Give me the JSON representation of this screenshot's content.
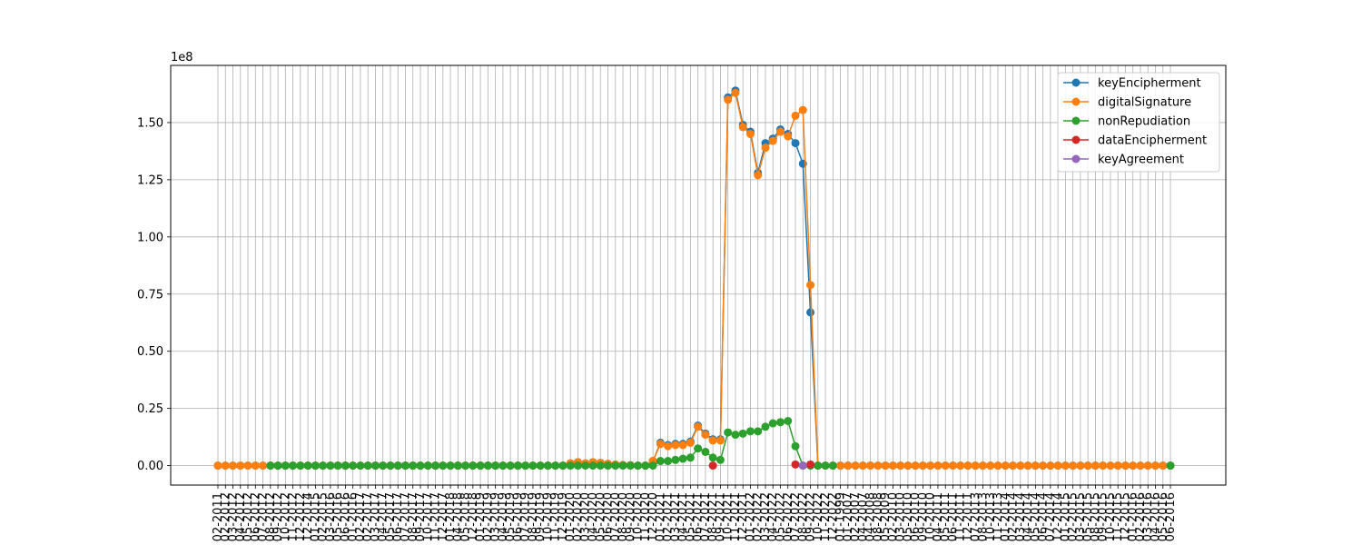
{
  "chart_data": {
    "type": "line",
    "title": "",
    "xlabel": "",
    "ylabel": "",
    "y_scale_label": "1e8",
    "ylim": [
      -8500000,
      175000000
    ],
    "yticks": [
      0,
      25000000,
      50000000,
      75000000,
      100000000,
      125000000,
      150000000
    ],
    "ytick_labels": [
      "0.00",
      "0.25",
      "0.50",
      "0.75",
      "1.00",
      "1.25",
      "1.50"
    ],
    "grid": true,
    "legend_position": "top-right",
    "x": [
      "02-2011",
      "02-2012",
      "03-2012",
      "04-2012",
      "05-2012",
      "06-2012",
      "07-2012",
      "08-2012",
      "09-2012",
      "10-2012",
      "11-2012",
      "12-2012",
      "12-2014",
      "01-2015",
      "02-2015",
      "03-2016",
      "05-2016",
      "06-2016",
      "01-2016",
      "02-2017",
      "02-2017",
      "03-2017",
      "04-2017",
      "05-2017",
      "06-2017",
      "07-2017",
      "08-2017",
      "09-2017",
      "10-2017",
      "11-2017",
      "12-2017",
      "01-2018",
      "04-2018",
      "05-2018",
      "12-2018",
      "01-2019",
      "02-2019",
      "03-2019",
      "04-2019",
      "05-2019",
      "06-2019",
      "07-2019",
      "08-2019",
      "09-2019",
      "10-2019",
      "11-2019",
      "12-2019",
      "01-2020",
      "02-2020",
      "03-2020",
      "04-2020",
      "05-2020",
      "06-2020",
      "07-2020",
      "08-2020",
      "09-2020",
      "10-2020",
      "11-2020",
      "12-2020",
      "01-2021",
      "02-2021",
      "03-2021",
      "04-2021",
      "05-2021",
      "06-2021",
      "07-2021",
      "08-2021",
      "09-2021",
      "10-2021",
      "11-2021",
      "12-2021",
      "01-2022",
      "02-2022",
      "03-2022",
      "04-2022",
      "05-2022",
      "06-2022",
      "07-2022",
      "08-2022",
      "09-2022",
      "10-2022",
      "11-2022",
      "12-2022",
      "01-1999",
      "01-2007",
      "02-2007",
      "04-2007",
      "04-2008",
      "08-2008",
      "05-2009",
      "02-2010",
      "03-2010",
      "05-2010",
      "06-2010",
      "09-2010",
      "10-2010",
      "04-2011",
      "05-2011",
      "06-2011",
      "11-2011",
      "12-2011",
      "07-2013",
      "08-2013",
      "10-2013",
      "11-2013",
      "01-2014",
      "02-2014",
      "03-2014",
      "04-2014",
      "05-2014",
      "06-2014",
      "07-2014",
      "12-2014",
      "01-2015",
      "02-2015",
      "03-2015",
      "05-2015",
      "08-2015",
      "09-2015",
      "10-2015",
      "11-2015",
      "12-2015",
      "01-2016",
      "02-2016",
      "03-2016",
      "04-2016",
      "05-2016",
      "06-2016"
    ],
    "series": [
      {
        "name": "keyEncipherment",
        "color": "#1f77b4",
        "values": [
          0,
          0,
          0,
          0,
          0,
          0,
          0,
          0,
          0,
          0,
          0,
          0,
          0,
          0,
          0,
          0,
          0,
          0,
          0,
          0,
          0,
          0,
          0,
          0,
          0,
          0,
          0,
          0,
          0,
          0,
          0,
          0,
          0,
          0,
          0,
          0,
          0,
          0,
          0,
          0,
          0,
          0,
          0,
          0,
          0,
          0,
          0,
          1000000,
          1500000,
          1000000,
          1500000,
          1200000,
          800000,
          500000,
          300000,
          200000,
          0,
          0,
          2000000,
          10000000,
          9000000,
          9500000,
          9500000,
          10500000,
          17500000,
          14000000,
          11500000,
          11500000,
          161000000,
          164000000,
          149000000,
          146000000,
          128000000,
          141000000,
          143000000,
          147000000,
          145000000,
          141000000,
          132000000,
          67000000,
          0,
          0,
          0,
          0,
          0,
          0,
          0,
          0,
          0,
          0,
          0,
          0,
          0,
          0,
          0,
          0,
          0,
          0,
          0,
          0,
          0,
          0,
          0,
          0,
          0,
          0,
          0,
          0,
          0,
          0,
          0,
          0,
          0,
          0,
          0,
          0,
          0,
          0,
          0,
          0,
          0,
          0,
          0,
          0,
          0,
          0,
          0,
          0
        ]
      },
      {
        "name": "digitalSignature",
        "color": "#ff7f0e",
        "values": [
          0,
          0,
          0,
          0,
          0,
          0,
          0,
          0,
          0,
          0,
          0,
          0,
          0,
          0,
          0,
          0,
          0,
          0,
          0,
          0,
          0,
          0,
          0,
          0,
          0,
          0,
          0,
          0,
          0,
          0,
          0,
          0,
          0,
          0,
          0,
          0,
          0,
          0,
          0,
          0,
          0,
          0,
          0,
          0,
          0,
          0,
          0,
          1000000,
          1500000,
          1000000,
          1500000,
          1200000,
          800000,
          500000,
          300000,
          200000,
          0,
          0,
          2000000,
          9500000,
          8500000,
          9000000,
          9000000,
          10000000,
          17000000,
          13500000,
          11000000,
          11000000,
          160000000,
          163000000,
          148000000,
          145000000,
          127000000,
          139000000,
          142000000,
          146000000,
          144000000,
          153000000,
          155500000,
          79000000,
          0,
          0,
          0,
          0,
          0,
          0,
          0,
          0,
          0,
          0,
          0,
          0,
          0,
          0,
          0,
          0,
          0,
          0,
          0,
          0,
          0,
          0,
          0,
          0,
          0,
          0,
          0,
          0,
          0,
          0,
          0,
          0,
          0,
          0,
          0,
          0,
          0,
          0,
          0,
          0,
          0,
          0,
          0,
          0,
          0,
          0,
          0,
          0
        ]
      },
      {
        "name": "nonRepudiation",
        "color": "#2ca02c",
        "values": [
          null,
          null,
          null,
          null,
          null,
          null,
          null,
          0,
          0,
          0,
          0,
          0,
          0,
          0,
          0,
          0,
          0,
          0,
          0,
          0,
          0,
          0,
          0,
          0,
          0,
          0,
          0,
          0,
          0,
          0,
          0,
          0,
          0,
          0,
          0,
          0,
          0,
          0,
          0,
          0,
          0,
          0,
          0,
          0,
          0,
          0,
          0,
          0,
          0,
          0,
          0,
          0,
          0,
          0,
          0,
          0,
          0,
          0,
          0,
          2000000,
          2000000,
          2500000,
          3000000,
          3500000,
          7500000,
          6000000,
          3500000,
          2500000,
          14500000,
          13500000,
          14000000,
          15000000,
          15000000,
          17000000,
          18500000,
          19000000,
          19500000,
          8500000,
          0,
          0,
          0,
          0,
          0,
          null,
          null,
          null,
          null,
          null,
          null,
          null,
          null,
          null,
          null,
          null,
          null,
          null,
          null,
          null,
          null,
          null,
          null,
          null,
          null,
          null,
          null,
          null,
          null,
          null,
          null,
          null,
          null,
          null,
          null,
          null,
          null,
          null,
          null,
          null,
          null,
          null,
          null,
          null,
          null,
          null,
          null,
          null,
          null,
          0
        ]
      },
      {
        "name": "dataEncipherment",
        "color": "#d62728",
        "values": [
          null,
          null,
          null,
          null,
          null,
          null,
          null,
          null,
          null,
          null,
          null,
          null,
          null,
          null,
          null,
          null,
          null,
          null,
          null,
          null,
          null,
          null,
          null,
          null,
          null,
          null,
          null,
          null,
          null,
          null,
          null,
          null,
          null,
          null,
          null,
          null,
          null,
          null,
          null,
          null,
          null,
          null,
          null,
          null,
          null,
          null,
          null,
          null,
          null,
          null,
          null,
          null,
          null,
          null,
          null,
          null,
          null,
          null,
          null,
          null,
          null,
          null,
          null,
          null,
          null,
          null,
          0,
          null,
          null,
          null,
          null,
          null,
          null,
          null,
          null,
          null,
          null,
          500000,
          null,
          500000,
          null,
          null,
          null,
          null,
          null,
          null,
          null,
          null,
          null,
          null,
          null,
          null,
          null,
          null,
          null,
          null,
          null,
          null,
          null,
          null,
          null,
          null,
          null,
          null,
          null,
          null,
          null,
          null,
          null,
          null,
          null,
          null,
          null,
          null,
          null,
          null,
          null,
          null,
          null,
          null,
          null,
          null,
          null,
          null,
          null,
          null,
          null,
          null
        ]
      },
      {
        "name": "keyAgreement",
        "color": "#9467bd",
        "values": [
          null,
          null,
          null,
          null,
          null,
          null,
          null,
          null,
          null,
          null,
          null,
          null,
          null,
          null,
          null,
          null,
          null,
          null,
          null,
          null,
          null,
          null,
          null,
          null,
          null,
          null,
          null,
          null,
          null,
          null,
          null,
          null,
          null,
          null,
          null,
          null,
          null,
          null,
          null,
          null,
          null,
          null,
          null,
          null,
          null,
          null,
          null,
          null,
          null,
          null,
          null,
          null,
          null,
          null,
          null,
          null,
          null,
          null,
          null,
          null,
          null,
          null,
          null,
          null,
          null,
          null,
          null,
          null,
          null,
          null,
          null,
          null,
          null,
          null,
          null,
          null,
          null,
          null,
          0,
          null,
          null,
          null,
          null,
          null,
          null,
          null,
          null,
          null,
          null,
          null,
          null,
          null,
          null,
          null,
          null,
          null,
          null,
          null,
          null,
          null,
          null,
          null,
          null,
          null,
          null,
          null,
          null,
          null,
          null,
          null,
          null,
          null,
          null,
          null,
          null,
          null,
          null,
          null,
          null,
          null,
          null,
          null,
          null,
          null,
          null,
          null,
          null,
          null
        ]
      }
    ]
  }
}
